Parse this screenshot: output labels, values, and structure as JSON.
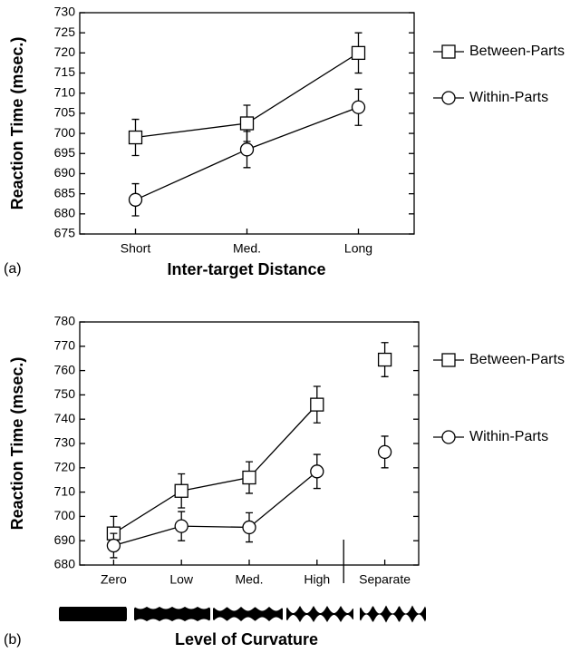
{
  "chart_data": [
    {
      "type": "line",
      "panel_label": "(a)",
      "x_label": "Inter-target Distance",
      "y_label": "Reaction Time (msec.)",
      "categories": [
        "Short",
        "Med.",
        "Long"
      ],
      "series": [
        {
          "name": "Between-Parts",
          "marker": "square",
          "color": "#000000",
          "values": [
            699,
            702.5,
            720
          ],
          "errors": [
            4.5,
            4.5,
            5
          ]
        },
        {
          "name": "Within-Parts",
          "marker": "circle",
          "color": "#000000",
          "values": [
            683.5,
            696,
            706.5
          ],
          "errors": [
            4,
            4.5,
            4.5
          ]
        }
      ],
      "ylim": [
        675,
        730
      ],
      "yticks": [
        675,
        680,
        685,
        690,
        695,
        700,
        705,
        710,
        715,
        720,
        725,
        730
      ],
      "legend": "right"
    },
    {
      "type": "line",
      "panel_label": "(b)",
      "x_label": "Level of Curvature",
      "y_label": "Reaction Time (msec.)",
      "categories": [
        "Zero",
        "Low",
        "Med.",
        "High",
        "Separate"
      ],
      "series": [
        {
          "name": "Between-Parts",
          "marker": "square",
          "color": "#000000",
          "values": [
            693,
            710.5,
            716,
            746,
            764.5
          ],
          "errors": [
            7,
            7,
            6.5,
            7.5,
            7
          ]
        },
        {
          "name": "Within-Parts",
          "marker": "circle",
          "color": "#000000",
          "values": [
            688,
            696,
            695.5,
            718.5,
            726.5
          ],
          "errors": [
            5,
            6,
            6,
            7,
            6.5
          ]
        }
      ],
      "ylim": [
        680,
        780
      ],
      "yticks": [
        680,
        690,
        700,
        710,
        720,
        730,
        740,
        750,
        760,
        770,
        780
      ],
      "break_before": 4,
      "legend": "right"
    }
  ]
}
